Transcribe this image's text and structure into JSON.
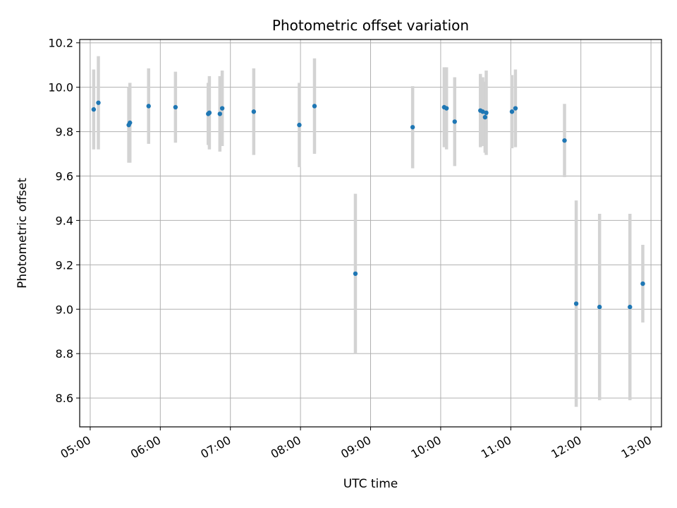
{
  "chart_data": {
    "type": "scatter",
    "title": "Photometric offset variation",
    "xlabel": "UTC time",
    "ylabel": "Photometric offset",
    "xlim": [
      "04:51",
      "13:09"
    ],
    "ylim": [
      8.47,
      10.215
    ],
    "x_ticks": [
      "05:00",
      "06:00",
      "07:00",
      "08:00",
      "09:00",
      "10:00",
      "11:00",
      "12:00",
      "13:00"
    ],
    "y_ticks": [
      "8.6",
      "8.8",
      "9.0",
      "9.2",
      "9.4",
      "9.6",
      "9.8",
      "10.0",
      "10.2"
    ],
    "grid": true,
    "colors": {
      "points": "#1f77b4",
      "errorbars": "#d3d3d3",
      "grid": "#b0b0b0"
    },
    "series": [
      {
        "points": [
          {
            "x": "05:03",
            "y": 9.9,
            "err": 0.18
          },
          {
            "x": "05:07",
            "y": 9.93,
            "err": 0.21
          },
          {
            "x": "05:33",
            "y": 9.83,
            "err": 0.17
          },
          {
            "x": "05:34",
            "y": 9.84,
            "err": 0.18
          },
          {
            "x": "05:50",
            "y": 9.915,
            "err": 0.17
          },
          {
            "x": "06:13",
            "y": 9.91,
            "err": 0.16
          },
          {
            "x": "06:41",
            "y": 9.88,
            "err": 0.14
          },
          {
            "x": "06:42",
            "y": 9.885,
            "err": 0.165
          },
          {
            "x": "06:51",
            "y": 9.88,
            "err": 0.17
          },
          {
            "x": "06:53",
            "y": 9.905,
            "err": 0.17
          },
          {
            "x": "07:20",
            "y": 9.89,
            "err": 0.195
          },
          {
            "x": "07:59",
            "y": 9.83,
            "err": 0.19
          },
          {
            "x": "08:12",
            "y": 9.915,
            "err": 0.215
          },
          {
            "x": "08:47",
            "y": 9.16,
            "err": 0.36
          },
          {
            "x": "09:36",
            "y": 9.82,
            "err": 0.185
          },
          {
            "x": "10:03",
            "y": 9.91,
            "err": 0.18
          },
          {
            "x": "10:05",
            "y": 9.905,
            "err": 0.185
          },
          {
            "x": "10:12",
            "y": 9.845,
            "err": 0.2
          },
          {
            "x": "10:34",
            "y": 9.895,
            "err": 0.165
          },
          {
            "x": "10:36",
            "y": 9.89,
            "err": 0.155
          },
          {
            "x": "10:38",
            "y": 9.865,
            "err": 0.16
          },
          {
            "x": "10:39",
            "y": 9.885,
            "err": 0.19
          },
          {
            "x": "11:01",
            "y": 9.89,
            "err": 0.165
          },
          {
            "x": "11:04",
            "y": 9.905,
            "err": 0.175
          },
          {
            "x": "11:46",
            "y": 9.76,
            "err": 0.165
          },
          {
            "x": "11:56",
            "y": 9.025,
            "err": 0.465
          },
          {
            "x": "12:16",
            "y": 9.01,
            "err": 0.42
          },
          {
            "x": "12:42",
            "y": 9.01,
            "err": 0.42
          },
          {
            "x": "12:53",
            "y": 9.115,
            "err": 0.175
          }
        ]
      }
    ]
  }
}
